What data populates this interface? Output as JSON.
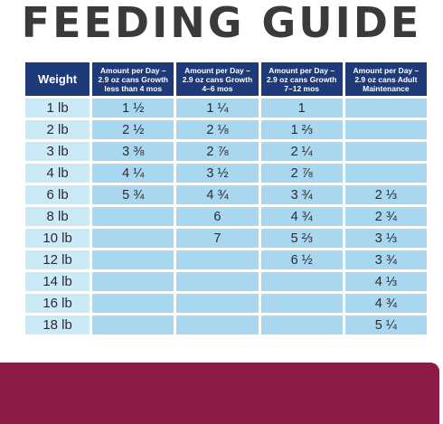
{
  "title": "FEEDING GUIDE",
  "headers": [
    "Weight",
    "Amount per Day – 2.9 oz cans Growth less than 4 mos",
    "Amount per Day – 2.9 oz cans Growth 4–6 mos",
    "Amount per Day – 2.9 oz cans Growth 7–12 mos",
    "Amount per Day – 2.9 oz cans Adult Maintenance"
  ],
  "rows": [
    [
      "1 lb",
      "1 ½",
      "1 ¼",
      "1",
      ""
    ],
    [
      "2 lb",
      "2 ½",
      "2 ⅛",
      "1 ⅔",
      ""
    ],
    [
      "3 lb",
      "3 ⅜",
      "2 ⅞",
      "2 ¼",
      ""
    ],
    [
      "4 lb",
      "4 ¼",
      "3 ½",
      "2 ⅞",
      ""
    ],
    [
      "6 lb",
      "5 ¾",
      "4 ¾",
      "3 ¾",
      "2 ⅓"
    ],
    [
      "8 lb",
      "",
      "6",
      "4 ¾",
      "2 ¾"
    ],
    [
      "10 lb",
      "",
      "7",
      "5 ⅔",
      "3 ⅓"
    ],
    [
      "12 lb",
      "",
      "",
      "6 ½",
      "3 ¾"
    ],
    [
      "14 lb",
      "",
      "",
      "",
      "4 ⅓"
    ],
    [
      "16 lb",
      "",
      "",
      "",
      "4 ¾"
    ],
    [
      "18 lb",
      "",
      "",
      "",
      "5 ¼"
    ]
  ],
  "colors": {
    "header_bg": "#1f3a78",
    "weight_cell_bg": "#cbe9f7",
    "value_cell_bg": "#a9d7ef",
    "footer_band": "#8e1a47",
    "title_text": "#3a3a3a"
  }
}
